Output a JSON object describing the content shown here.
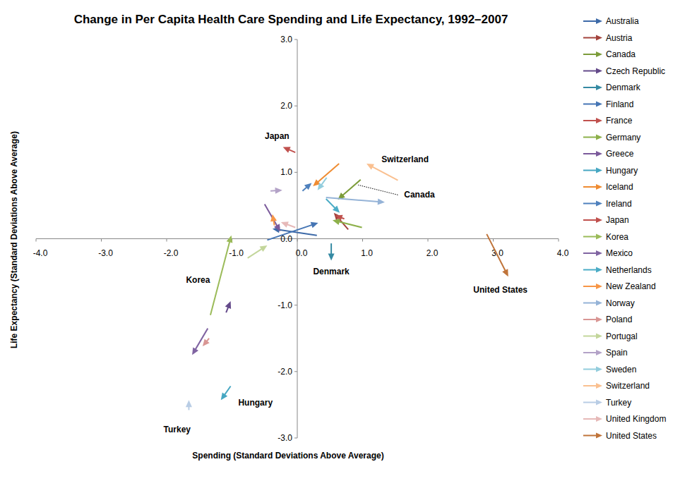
{
  "chart_data": {
    "type": "arrow",
    "title": "Change in Per Capita Health Care Spending and Life Expectancy, 1992–2007",
    "x_label": "Spending (Standard Deviations Above Average)",
    "y_label": "Life Expectancy (Standard Deviations Above Average)",
    "xlim": [
      -4,
      4
    ],
    "ylim": [
      -3,
      3
    ],
    "xticks": [
      {
        "value": -4,
        "label": "-4.0"
      },
      {
        "value": -3,
        "label": "-3.0"
      },
      {
        "value": -2,
        "label": "-2.0"
      },
      {
        "value": -1,
        "label": "-1.0"
      },
      {
        "value": 0,
        "label": "0.0"
      },
      {
        "value": 1,
        "label": "1.0"
      },
      {
        "value": 2,
        "label": "2.0"
      },
      {
        "value": 3,
        "label": "3.0"
      },
      {
        "value": 4,
        "label": "4.0"
      }
    ],
    "yticks": [
      {
        "value": -3,
        "label": "-3.0"
      },
      {
        "value": -2,
        "label": "-2.0"
      },
      {
        "value": -1,
        "label": "-1.0"
      },
      {
        "value": 0,
        "label": "0.0"
      },
      {
        "value": 1,
        "label": "1.0"
      },
      {
        "value": 2,
        "label": "2.0"
      },
      {
        "value": 3,
        "label": "3.0"
      }
    ],
    "grid": false,
    "legend": "right",
    "series": [
      {
        "name": "Australia",
        "color": "#3d6aa8",
        "x": [
          0.3,
          -0.38
        ],
        "values": [
          0.05,
          0.15
        ]
      },
      {
        "name": "Austria",
        "color": "#a3423c",
        "x": [
          0.78,
          0.56
        ],
        "values": [
          0.14,
          0.39
        ]
      },
      {
        "name": "Canada",
        "color": "#7c9c3a",
        "x": [
          0.97,
          0.62
        ],
        "values": [
          0.89,
          0.59
        ]
      },
      {
        "name": "Czech Republic",
        "color": "#644a8a",
        "x": [
          -1.09,
          -1.02
        ],
        "values": [
          -1.11,
          -0.94
        ]
      },
      {
        "name": "Denmark",
        "color": "#358aa3",
        "x": [
          0.52,
          0.52
        ],
        "values": [
          -0.07,
          -0.33
        ]
      },
      {
        "name": "Finland",
        "color": "#4575b4",
        "x": [
          -0.46,
          0.32
        ],
        "values": [
          -0.02,
          0.24
        ]
      },
      {
        "name": "France",
        "color": "#c0504d",
        "x": [
          0.72,
          0.58
        ],
        "values": [
          0.3,
          0.35
        ]
      },
      {
        "name": "Germany",
        "color": "#8db04a",
        "x": [
          0.99,
          0.54
        ],
        "values": [
          0.17,
          0.28
        ]
      },
      {
        "name": "Greece",
        "color": "#7b5a9b",
        "x": [
          -0.5,
          -0.26
        ],
        "values": [
          0.52,
          0.11
        ]
      },
      {
        "name": "Hungary",
        "color": "#46a7c2",
        "x": [
          -1.02,
          -1.17
        ],
        "values": [
          -2.22,
          -2.43
        ]
      },
      {
        "name": "Iceland",
        "color": "#ef8c32",
        "x": [
          0.64,
          0.24
        ],
        "values": [
          1.13,
          0.79
        ]
      },
      {
        "name": "Ireland",
        "color": "#4f81bd",
        "x": [
          0.08,
          0.22
        ],
        "values": [
          0.72,
          0.84
        ]
      },
      {
        "name": "Japan",
        "color": "#c0504d",
        "x": [
          -0.03,
          -0.22
        ],
        "values": [
          1.3,
          1.38
        ]
      },
      {
        "name": "Korea",
        "color": "#9bbb59",
        "x": [
          -1.33,
          -1.01
        ],
        "values": [
          -1.15,
          0.05
        ]
      },
      {
        "name": "Mexico",
        "color": "#8064a2",
        "x": [
          -1.37,
          -1.61
        ],
        "values": [
          -1.35,
          -1.75
        ]
      },
      {
        "name": "Netherlands",
        "color": "#4bacc6",
        "x": [
          0.44,
          0.65
        ],
        "values": [
          0.6,
          0.39
        ]
      },
      {
        "name": "New Zealand",
        "color": "#f79646",
        "x": [
          -0.35,
          -0.38
        ],
        "values": [
          0.2,
          0.37
        ]
      },
      {
        "name": "Norway",
        "color": "#95b3d7",
        "x": [
          0.44,
          1.34
        ],
        "values": [
          0.62,
          0.55
        ]
      },
      {
        "name": "Poland",
        "color": "#d99694",
        "x": [
          -1.35,
          -1.45
        ],
        "values": [
          -1.5,
          -1.62
        ]
      },
      {
        "name": "Portugal",
        "color": "#c3d69b",
        "x": [
          -0.76,
          -0.46
        ],
        "values": [
          -0.29,
          -0.1
        ]
      },
      {
        "name": "Spain",
        "color": "#b3a2c7",
        "x": [
          -0.41,
          -0.23
        ],
        "values": [
          0.72,
          0.73
        ]
      },
      {
        "name": "Sweden",
        "color": "#93cddd",
        "x": [
          0.45,
          0.31
        ],
        "values": [
          0.92,
          0.73
        ]
      },
      {
        "name": "Switzerland",
        "color": "#fac090",
        "x": [
          1.54,
          1.06
        ],
        "values": [
          0.88,
          1.13
        ]
      },
      {
        "name": "Turkey",
        "color": "#b9cde5",
        "x": [
          -1.66,
          -1.66
        ],
        "values": [
          -2.58,
          -2.43
        ]
      },
      {
        "name": "United Kingdom",
        "color": "#e6b9b8",
        "x": [
          -0.03,
          -0.25
        ],
        "values": [
          0.17,
          0.25
        ]
      },
      {
        "name": "United States",
        "color": "#c0743a",
        "x": [
          2.9,
          3.23
        ],
        "values": [
          0.07,
          -0.57
        ]
      }
    ],
    "annotations": [
      {
        "text": "Japan",
        "x": -0.31,
        "y": 1.54
      },
      {
        "text": "Switzerland",
        "x": 1.65,
        "y": 1.19
      },
      {
        "text": "Canada",
        "x": 1.87,
        "y": 0.66,
        "line": [
          [
            1.54,
            0.66
          ],
          [
            0.93,
            0.81
          ]
        ]
      },
      {
        "text": "Denmark",
        "x": 0.52,
        "y": -0.49
      },
      {
        "text": "United States",
        "x": 3.11,
        "y": -0.77
      },
      {
        "text": "Korea",
        "x": -1.52,
        "y": -0.62
      },
      {
        "text": "Hungary",
        "x": -0.64,
        "y": -2.47
      },
      {
        "text": "Turkey",
        "x": -1.84,
        "y": -2.87
      }
    ]
  }
}
